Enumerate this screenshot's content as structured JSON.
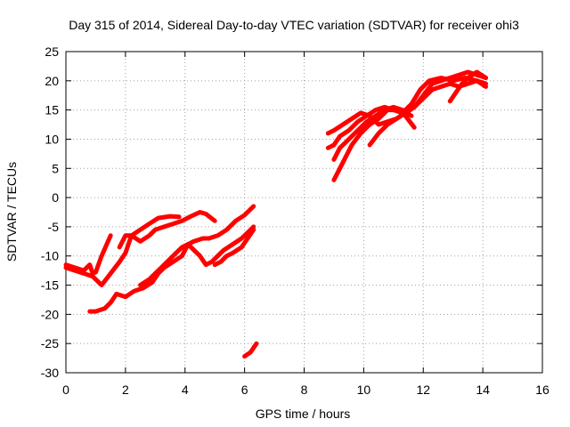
{
  "chart_data": {
    "type": "line",
    "title": "Day 315 of 2014, Sidereal Day-to-day VTEC variation (SDTVAR) for receiver ohi3",
    "xlabel": "GPS time / hours",
    "ylabel": "SDTVAR / TECUs",
    "xlim": [
      0,
      16
    ],
    "ylim": [
      -30,
      25
    ],
    "xticks": [
      0,
      2,
      4,
      6,
      8,
      10,
      12,
      14,
      16
    ],
    "yticks": [
      -30,
      -25,
      -20,
      -15,
      -10,
      -5,
      0,
      5,
      10,
      15,
      20,
      25
    ],
    "grid": true,
    "legend": "none",
    "color": "#ff0000",
    "series": [
      {
        "x": [
          0.0,
          0.3,
          0.6,
          0.8,
          0.9,
          1.0,
          1.2,
          1.5
        ],
        "y": [
          -11.5,
          -12.0,
          -12.5,
          -11.5,
          -13.0,
          -12.8,
          -10.0,
          -6.5
        ]
      },
      {
        "x": [
          0.0,
          0.3,
          0.6,
          0.9,
          1.2,
          1.5,
          1.8,
          2.0,
          2.1,
          2.2,
          2.5,
          2.8,
          3.1,
          3.5,
          3.8
        ],
        "y": [
          -12.0,
          -12.5,
          -13.0,
          -13.5,
          -15.0,
          -13.0,
          -11.0,
          -9.5,
          -8.0,
          -6.5,
          -5.5,
          -4.5,
          -3.5,
          -3.2,
          -3.3
        ]
      },
      {
        "x": [
          1.8,
          2.0,
          2.2,
          2.5,
          2.8,
          3.0,
          3.3,
          3.6,
          3.9,
          4.2,
          4.5,
          4.7,
          5.0
        ],
        "y": [
          -8.5,
          -6.5,
          -6.5,
          -7.5,
          -6.5,
          -5.5,
          -5.0,
          -4.5,
          -4.0,
          -3.2,
          -2.5,
          -2.8,
          -4.0
        ]
      },
      {
        "x": [
          0.8,
          1.0,
          1.3,
          1.5,
          1.7,
          2.0,
          2.3,
          2.6,
          2.9,
          3.1,
          3.3,
          3.6,
          3.9,
          4.1,
          4.3,
          4.6,
          4.8,
          5.1,
          5.4,
          5.7,
          6.0,
          6.3
        ],
        "y": [
          -19.5,
          -19.5,
          -19.0,
          -18.0,
          -16.5,
          -17.0,
          -16.0,
          -15.5,
          -14.5,
          -13.0,
          -12.0,
          -11.0,
          -10.0,
          -8.0,
          -7.5,
          -7.0,
          -7.0,
          -6.5,
          -5.5,
          -4.0,
          -3.0,
          -1.5
        ]
      },
      {
        "x": [
          2.5,
          2.8,
          3.0,
          3.2,
          3.5,
          3.7,
          3.9,
          4.1,
          4.3,
          4.5,
          4.7,
          4.9,
          5.1,
          5.3,
          5.6,
          5.9,
          6.1,
          6.3
        ],
        "y": [
          -15.0,
          -14.0,
          -13.0,
          -12.0,
          -10.5,
          -9.5,
          -8.5,
          -8.0,
          -9.0,
          -10.0,
          -11.5,
          -11.0,
          -10.0,
          -9.0,
          -8.0,
          -7.0,
          -6.0,
          -5.0
        ]
      },
      {
        "x": [
          5.0,
          5.2,
          5.4,
          5.6,
          5.9,
          6.1,
          6.3
        ],
        "y": [
          -11.5,
          -11.0,
          -10.0,
          -9.5,
          -8.5,
          -7.0,
          -5.5
        ]
      },
      {
        "x": [
          6.0,
          6.2,
          6.4
        ],
        "y": [
          -27.2,
          -26.5,
          -25.0
        ]
      },
      {
        "x": [
          8.8,
          9.0,
          9.2,
          9.5,
          9.8,
          10.1,
          10.4,
          10.7,
          11.0,
          11.3,
          11.6,
          11.9,
          12.2,
          12.6,
          13.0,
          13.4,
          13.8,
          14.1
        ],
        "y": [
          8.5,
          9.0,
          10.5,
          11.5,
          13.0,
          14.0,
          15.0,
          15.5,
          15.0,
          14.5,
          16.0,
          18.5,
          20.0,
          20.5,
          20.0,
          20.5,
          20.0,
          19.5
        ]
      },
      {
        "x": [
          8.8,
          9.0,
          9.3,
          9.6,
          9.9,
          10.2,
          10.5,
          10.8,
          11.1,
          11.4,
          11.7,
          12.0,
          12.3,
          12.6,
          12.9,
          13.2,
          13.5,
          13.8,
          14.1
        ],
        "y": [
          11.0,
          11.5,
          12.5,
          13.5,
          14.5,
          14.0,
          12.5,
          13.0,
          13.5,
          14.5,
          15.5,
          17.5,
          19.5,
          20.0,
          20.5,
          21.0,
          21.5,
          21.0,
          20.5
        ]
      },
      {
        "x": [
          9.0,
          9.2,
          9.5,
          9.8,
          10.1,
          10.4,
          10.7,
          11.0,
          11.3,
          11.6
        ],
        "y": [
          6.5,
          8.5,
          10.0,
          11.5,
          13.0,
          14.0,
          15.0,
          15.5,
          15.0,
          14.0
        ]
      },
      {
        "x": [
          9.0,
          9.2,
          9.4,
          9.6,
          9.9,
          10.2,
          10.5,
          10.8,
          11.1,
          11.4,
          11.7
        ],
        "y": [
          3.0,
          5.0,
          7.0,
          9.0,
          11.0,
          12.5,
          13.5,
          15.0,
          15.0,
          14.0,
          12.0
        ]
      },
      {
        "x": [
          10.2,
          10.5,
          10.8,
          11.1,
          11.4,
          11.7,
          12.0,
          12.3,
          12.6,
          12.9,
          13.2,
          13.5,
          13.8,
          14.1
        ],
        "y": [
          9.0,
          11.0,
          12.5,
          13.5,
          14.5,
          15.5,
          17.0,
          18.5,
          19.0,
          19.5,
          19.0,
          19.5,
          20.0,
          19.0
        ]
      },
      {
        "x": [
          12.9,
          13.1,
          13.3,
          13.5,
          13.8,
          14.1
        ],
        "y": [
          16.5,
          18.0,
          19.5,
          20.5,
          21.5,
          20.5
        ]
      }
    ]
  }
}
